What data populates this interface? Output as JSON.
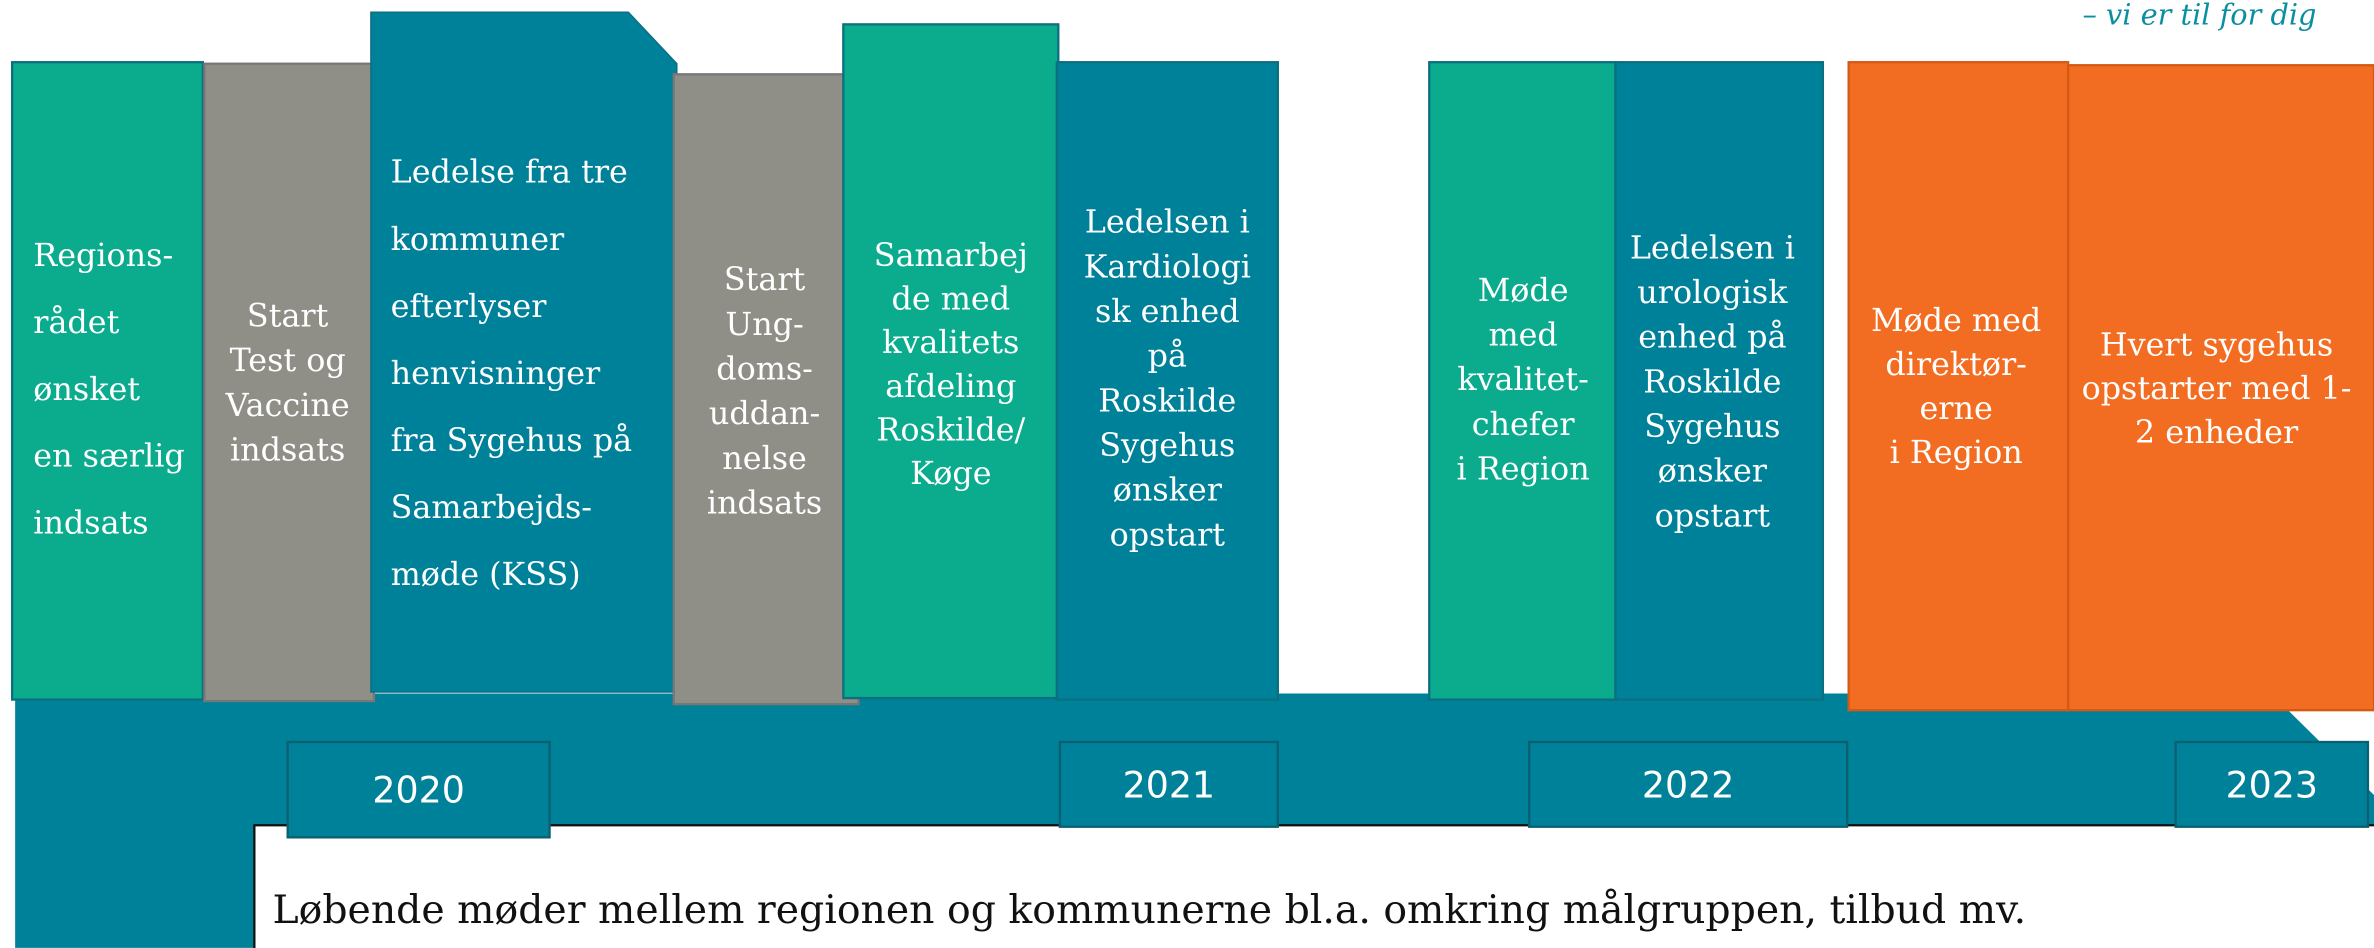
{
  "logo": "– vi er til for dig",
  "columns": [
    {
      "lines": [
        "Regions-",
        "rådet",
        "ønsket",
        "en særlig",
        "indsats"
      ]
    },
    {
      "lines": [
        "Start",
        "Test og",
        "Vaccine",
        "indsats"
      ]
    },
    {
      "lines": [
        "Ledelse fra tre",
        "kommuner",
        "efterlyser",
        "henvisninger",
        "fra Sygehus på",
        "Samarbejds-",
        "møde (KSS)"
      ]
    },
    {
      "lines": [
        "Start",
        "Ung-",
        "doms-",
        "uddan-",
        "nelse",
        "indsats"
      ]
    },
    {
      "lines": [
        "Samarbej",
        "de med",
        "kvalitets",
        "afdeling",
        "Roskilde/",
        "Køge"
      ]
    },
    {
      "lines": [
        "Ledelsen i",
        "Kardiologi",
        "sk enhed",
        "på",
        "Roskilde",
        "Sygehus",
        "ønsker",
        "opstart"
      ]
    },
    {
      "lines": [
        "Møde",
        "med",
        "kvalitet-",
        "chefer",
        "i Region"
      ]
    },
    {
      "lines": [
        "Ledelsen i",
        "urologisk",
        "enhed på",
        "Roskilde",
        "Sygehus",
        "ønsker",
        "opstart"
      ]
    },
    {
      "lines": [
        "Møde med",
        "direktør-",
        "erne",
        "i Region"
      ]
    },
    {
      "lines": [
        "Hvert sygehus",
        "opstarter med 1-",
        "2 enheder"
      ]
    }
  ],
  "years": [
    "2020",
    "2021",
    "2022",
    "2023"
  ],
  "footer": "Løbende møder mellem regionen og kommunerne bl.a. omkring målgruppen, tilbud mv."
}
